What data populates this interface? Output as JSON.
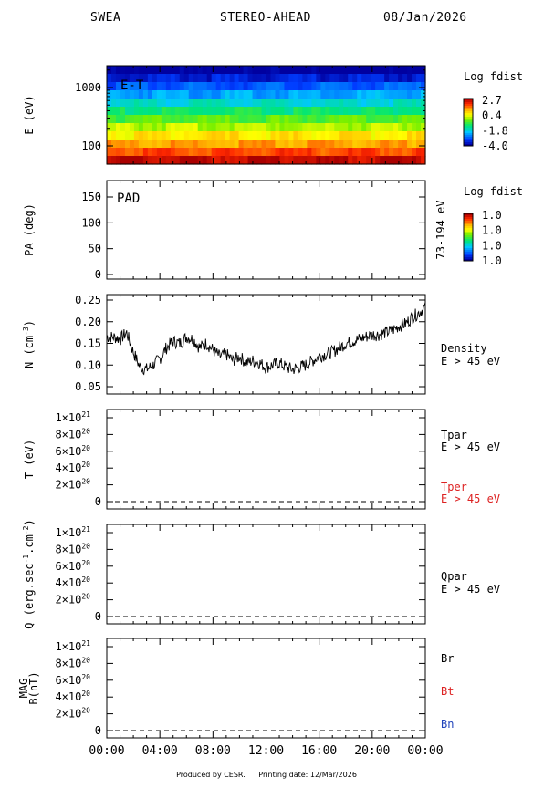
{
  "header": {
    "left": "SWEA",
    "center": "STEREO-AHEAD",
    "right": "08/Jan/2026"
  },
  "footer": {
    "produced": "Produced by CESR.",
    "printing": "Printing date: 12/Mar/2026"
  },
  "colors": {
    "red_label": "#dd2222",
    "blue_label": "#2244bb",
    "trace": "#000000"
  },
  "chart_data": [
    {
      "type": "heatmap",
      "panel": "energy-time",
      "label": "E-T",
      "ylabel": "E (eV)",
      "y_scale": "log",
      "y_ticks": [
        {
          "v": 1000,
          "t": "1000"
        },
        {
          "v": 100,
          "t": "100"
        }
      ],
      "colorbar_title": "Log fdist",
      "colorbar_ticks": [
        "2.7",
        "0.4",
        "-1.8",
        "-4.0"
      ],
      "bands_top_to_bottom_logfdist": [
        -4.0,
        -3.4,
        -2.8,
        -2.2,
        -1.6,
        -1.0,
        -0.4,
        0.2,
        0.8,
        1.4,
        2.0,
        2.7
      ]
    },
    {
      "type": "heatmap",
      "panel": "pitch-angle",
      "label": "PAD",
      "ylabel": "PA (deg)",
      "ylim": [
        0,
        180
      ],
      "y_ticks": [
        {
          "v": 150,
          "t": "150"
        },
        {
          "v": 100,
          "t": "100"
        },
        {
          "v": 50,
          "t": "50"
        },
        {
          "v": 0,
          "t": "0"
        }
      ],
      "right_label": "73-194 eV",
      "colorbar_title": "Log fdist",
      "colorbar_ticks": [
        "1.0",
        "1.0",
        "1.0",
        "1.0"
      ]
    },
    {
      "type": "line",
      "panel": "density",
      "ylabel": "N (cm-3)",
      "ylim": [
        0.03,
        0.26
      ],
      "y_ticks": [
        {
          "v": 0.25,
          "t": "0.25"
        },
        {
          "v": 0.2,
          "t": "0.20"
        },
        {
          "v": 0.15,
          "t": "0.15"
        },
        {
          "v": 0.1,
          "t": "0.10"
        },
        {
          "v": 0.05,
          "t": "0.05"
        }
      ],
      "legend": [
        {
          "lines": [
            "Density",
            "E > 45 eV"
          ],
          "color": "#000000"
        }
      ],
      "x_hours": [
        0,
        0.5,
        1,
        1.5,
        2,
        2.5,
        3,
        3.5,
        4,
        4.5,
        5,
        5.5,
        6,
        6.5,
        7,
        7.5,
        8,
        8.5,
        9,
        9.5,
        10,
        10.5,
        11,
        11.5,
        12,
        12.5,
        13,
        13.5,
        14,
        14.5,
        15,
        15.5,
        16,
        16.5,
        17,
        17.5,
        18,
        18.5,
        19,
        19.5,
        20,
        20.5,
        21,
        21.5,
        22,
        22.5,
        23,
        23.5,
        24
      ],
      "values": [
        0.165,
        0.165,
        0.16,
        0.175,
        0.13,
        0.095,
        0.09,
        0.1,
        0.115,
        0.14,
        0.155,
        0.15,
        0.165,
        0.16,
        0.14,
        0.15,
        0.135,
        0.12,
        0.125,
        0.11,
        0.12,
        0.105,
        0.11,
        0.105,
        0.095,
        0.1,
        0.105,
        0.095,
        0.09,
        0.095,
        0.1,
        0.11,
        0.12,
        0.125,
        0.13,
        0.14,
        0.15,
        0.155,
        0.16,
        0.165,
        0.17,
        0.17,
        0.175,
        0.18,
        0.19,
        0.195,
        0.21,
        0.22,
        0.235
      ]
    },
    {
      "type": "line",
      "panel": "temperature",
      "ylabel": "T (eV)",
      "ylim": [
        -8e+19,
        1.1e+21
      ],
      "y_ticks": [
        {
          "v": 1e+21,
          "m": "1",
          "e": "21"
        },
        {
          "v": 8e+20,
          "m": "8",
          "e": "20"
        },
        {
          "v": 6e+20,
          "m": "6",
          "e": "20"
        },
        {
          "v": 4e+20,
          "m": "4",
          "e": "20"
        },
        {
          "v": 2e+20,
          "m": "2",
          "e": "20"
        },
        {
          "v": 0,
          "t": "0"
        }
      ],
      "legend": [
        {
          "lines": [
            "Tpar",
            "E > 45 eV"
          ],
          "color": "#000000"
        },
        {
          "lines": [
            "Tper",
            "E > 45 eV"
          ],
          "color": "#dd2222"
        }
      ],
      "zero_line": true
    },
    {
      "type": "line",
      "panel": "heat-flux",
      "ylabel": "Q (erg.sec-1.cm-2)",
      "ylim": [
        -8e+19,
        1.1e+21
      ],
      "y_ticks": [
        {
          "v": 1e+21,
          "m": "1",
          "e": "21"
        },
        {
          "v": 8e+20,
          "m": "8",
          "e": "20"
        },
        {
          "v": 6e+20,
          "m": "6",
          "e": "20"
        },
        {
          "v": 4e+20,
          "m": "4",
          "e": "20"
        },
        {
          "v": 2e+20,
          "m": "2",
          "e": "20"
        },
        {
          "v": 0,
          "t": "0"
        }
      ],
      "legend": [
        {
          "lines": [
            "Qpar",
            "E > 45 eV"
          ],
          "color": "#000000"
        }
      ],
      "zero_line": true
    },
    {
      "type": "line",
      "panel": "magnetic-field",
      "ylabel": "MAG B(nT)",
      "ylim": [
        -8e+19,
        1.1e+21
      ],
      "y_ticks": [
        {
          "v": 1e+21,
          "m": "1",
          "e": "21"
        },
        {
          "v": 8e+20,
          "m": "8",
          "e": "20"
        },
        {
          "v": 6e+20,
          "m": "6",
          "e": "20"
        },
        {
          "v": 4e+20,
          "m": "4",
          "e": "20"
        },
        {
          "v": 2e+20,
          "m": "2",
          "e": "20"
        },
        {
          "v": 0,
          "t": "0"
        }
      ],
      "legend": [
        {
          "lines": [
            "Br"
          ],
          "color": "#000000"
        },
        {
          "lines": [
            "Bt"
          ],
          "color": "#dd2222"
        },
        {
          "lines": [
            "Bn"
          ],
          "color": "#2244bb"
        }
      ],
      "zero_line": true
    }
  ],
  "x_axis": {
    "range_hours": [
      0,
      24
    ],
    "ticks": [
      {
        "h": 0,
        "t": "00:00"
      },
      {
        "h": 4,
        "t": "04:00"
      },
      {
        "h": 8,
        "t": "08:00"
      },
      {
        "h": 12,
        "t": "12:00"
      },
      {
        "h": 16,
        "t": "16:00"
      },
      {
        "h": 20,
        "t": "20:00"
      },
      {
        "h": 24,
        "t": "00:00"
      }
    ]
  }
}
